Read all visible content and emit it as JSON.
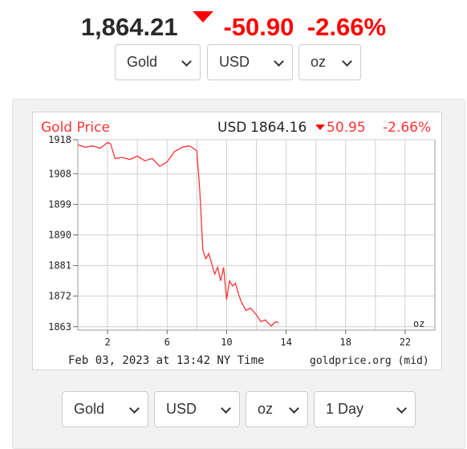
{
  "quote": {
    "price": "1,864.21",
    "change": "-50.90",
    "percent": "-2.66%"
  },
  "top_selects": {
    "metal": "Gold",
    "currency": "USD",
    "unit": "oz"
  },
  "bottom_selects": {
    "metal": "Gold",
    "currency": "USD",
    "unit": "oz",
    "range": "1 Day"
  },
  "colors": {
    "down": "#ff0000",
    "line": "#ff3333",
    "text": "#2a2a2a"
  },
  "chart_header": {
    "title": "Gold Price",
    "currency": "USD",
    "price": "1864.16",
    "change": "50.95",
    "percent": "-2.66%"
  },
  "chart_footer": {
    "timestamp": "Feb 03, 2023 at 13:42 NY Time",
    "source": "goldprice.org (mid)"
  },
  "chart_data": {
    "type": "line",
    "title": "Gold Price",
    "unit_label": "oz",
    "ylim": [
      1862,
      1918
    ],
    "xlim": [
      0,
      24
    ],
    "yticks": [
      1918,
      1908,
      1899,
      1890,
      1881,
      1872,
      1863
    ],
    "xticks": [
      2,
      6,
      10,
      14,
      18,
      22
    ],
    "grid": true,
    "series": [
      {
        "x": [
          0,
          0.5,
          1,
          1.5,
          2,
          2.2,
          2.5,
          3,
          3.5,
          4,
          4.5,
          5,
          5.5,
          6,
          6.5,
          7,
          7.5,
          8,
          8.2,
          8.4,
          8.6,
          8.8,
          9,
          9.2,
          9.4,
          9.6,
          9.8,
          10,
          10.2,
          10.4,
          10.6,
          10.8,
          11,
          11.3,
          11.6,
          12,
          12.3,
          12.6,
          13,
          13.3,
          13.5
        ],
        "y": [
          1916.5,
          1915.8,
          1916.2,
          1915.5,
          1917.2,
          1916.8,
          1912.5,
          1912.8,
          1912.2,
          1913.2,
          1911.8,
          1912.5,
          1910.2,
          1911.5,
          1914.5,
          1915.8,
          1916.2,
          1914.8,
          1903,
          1885.5,
          1883,
          1884.5,
          1881.5,
          1878.5,
          1880.5,
          1876.5,
          1880.5,
          1871,
          1876.5,
          1875,
          1875.8,
          1872.5,
          1870.2,
          1867.8,
          1868.5,
          1866.5,
          1864.5,
          1865,
          1863.2,
          1864.5,
          1864.2
        ]
      }
    ]
  }
}
